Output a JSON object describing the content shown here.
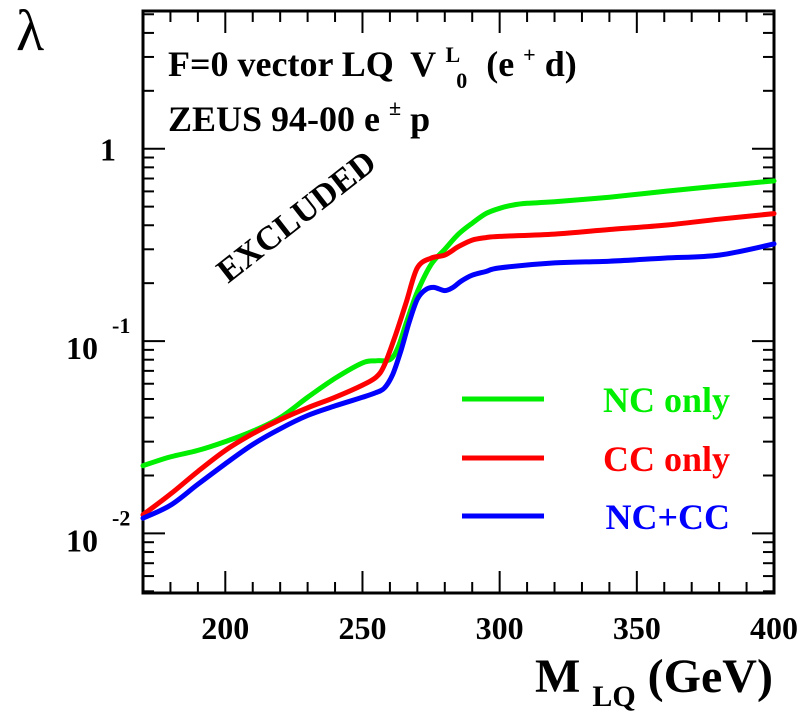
{
  "chart_data": {
    "type": "line",
    "title_line1": "F=0 vector LQ",
    "title_sym": "V",
    "title_sup": "L",
    "title_sub": "0",
    "title_tail_open": "(e",
    "title_tail_sup": "+",
    "title_tail_close": "d)",
    "title_line2": "ZEUS 94-00 e",
    "title_line2_sup": "±",
    "title_line2_tail": "p",
    "annotation": "EXCLUDED",
    "ylabel": "λ",
    "xlabel_main": "M",
    "xlabel_sub": "LQ",
    "xlabel_unit": "(GeV)",
    "xlim": [
      170,
      400
    ],
    "ylim": [
      0.0049,
      5.2
    ],
    "yscale": "log",
    "x_ticks": [
      200,
      250,
      300,
      350,
      400
    ],
    "y_ticks": [
      {
        "value": 1,
        "base": "1",
        "exp": ""
      },
      {
        "value": 0.1,
        "base": "10",
        "exp": "-1"
      },
      {
        "value": 0.01,
        "base": "10",
        "exp": "-2"
      }
    ],
    "legend_position": "bottom-right",
    "series": [
      {
        "name": "NC only",
        "color": "#00ee00",
        "x": [
          170,
          180,
          190,
          200,
          210,
          220,
          230,
          240,
          250,
          255,
          260,
          263,
          266,
          270,
          275,
          280,
          285,
          290,
          295,
          300,
          305,
          310,
          320,
          340,
          360,
          380,
          400
        ],
        "y": [
          0.0225,
          0.025,
          0.027,
          0.03,
          0.034,
          0.04,
          0.051,
          0.064,
          0.077,
          0.079,
          0.08,
          0.093,
          0.125,
          0.18,
          0.25,
          0.3,
          0.36,
          0.41,
          0.46,
          0.49,
          0.51,
          0.52,
          0.53,
          0.56,
          0.6,
          0.64,
          0.68
        ]
      },
      {
        "name": "CC only",
        "color": "#ff0000",
        "x": [
          170,
          180,
          190,
          200,
          210,
          220,
          230,
          240,
          250,
          255,
          258,
          262,
          266,
          270,
          275,
          280,
          285,
          290,
          295,
          300,
          320,
          340,
          360,
          380,
          400
        ],
        "y": [
          0.0125,
          0.016,
          0.021,
          0.027,
          0.033,
          0.039,
          0.045,
          0.051,
          0.059,
          0.065,
          0.075,
          0.107,
          0.16,
          0.24,
          0.27,
          0.28,
          0.31,
          0.335,
          0.345,
          0.35,
          0.36,
          0.38,
          0.4,
          0.43,
          0.46
        ]
      },
      {
        "name": "NC+CC",
        "color": "#0000ff",
        "x": [
          170,
          180,
          190,
          200,
          210,
          220,
          230,
          240,
          250,
          255,
          258,
          261,
          264,
          267,
          270,
          273,
          276,
          280,
          283,
          286,
          290,
          295,
          300,
          320,
          340,
          360,
          380,
          400
        ],
        "y": [
          0.012,
          0.014,
          0.018,
          0.023,
          0.029,
          0.035,
          0.041,
          0.046,
          0.051,
          0.054,
          0.057,
          0.067,
          0.089,
          0.125,
          0.165,
          0.185,
          0.19,
          0.183,
          0.19,
          0.205,
          0.22,
          0.23,
          0.24,
          0.255,
          0.26,
          0.27,
          0.28,
          0.32
        ]
      }
    ]
  }
}
